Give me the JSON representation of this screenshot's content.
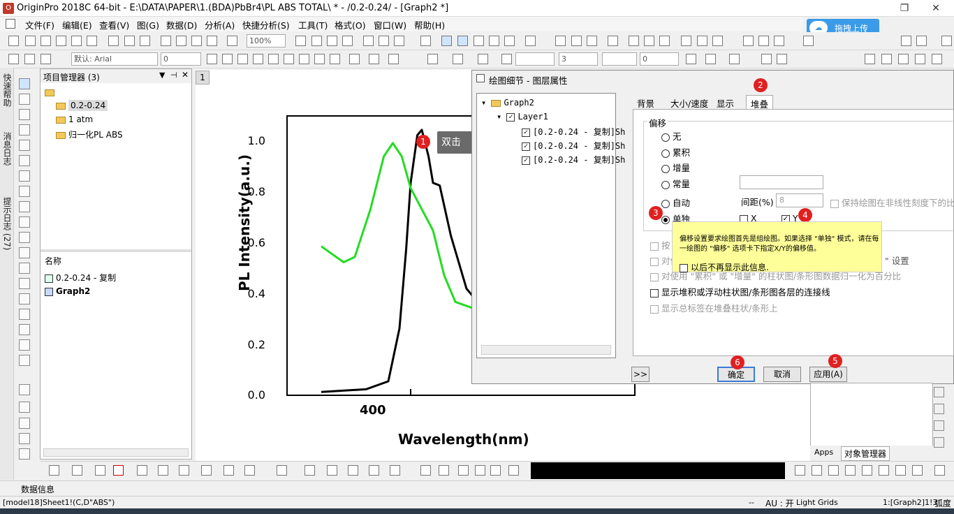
{
  "window": {
    "title": "OriginPro 2018C 64-bit - E:\\DATA\\PAPER\\1.(BDA)PbBr4\\PL ABS TOTAL\\ * - /0.2-0.24/ - [Graph2 *]"
  },
  "menu": [
    "文件(F)",
    "编辑(E)",
    "查看(V)",
    "图(G)",
    "数据(D)",
    "分析(A)",
    "快捷分析(S)",
    "工具(T)",
    "格式(O)",
    "窗口(W)",
    "帮助(H)"
  ],
  "cloud_button": "拖拽上传",
  "toolbar": {
    "zoom": "100%",
    "font": "默认: Arial",
    "font_size": "0",
    "line_width": "3",
    "line_value": "0"
  },
  "sidebar_tabs": [
    "快速帮助",
    "消息日志",
    "提示日志 (27)"
  ],
  "project_manager": {
    "title": "项目管理器 (3)",
    "folders": [
      "0.2-0.24",
      "1 atm",
      "归一化PL ABS"
    ],
    "list_header": "名称",
    "items": [
      "0.2-0.24 - 复制",
      "Graph2"
    ]
  },
  "graph": {
    "tab": "1",
    "ylabel": "PL Intensity(a.u.)",
    "xlabel": "Wavelength(nm)",
    "yticks": [
      "1.0",
      "0.8",
      "0.6",
      "0.4",
      "0.2",
      "0.0"
    ],
    "xticks": [
      "400"
    ]
  },
  "chart_data": {
    "type": "line",
    "ylabel": "PL Intensity(a.u.)",
    "xlabel": "Wavelength(nm)",
    "ylim": [
      0,
      1.05
    ],
    "series": [
      {
        "color": "#000000",
        "points": [
          [
            360,
            0.01
          ],
          [
            380,
            0.02
          ],
          [
            390,
            0.05
          ],
          [
            395,
            0.25
          ],
          [
            398,
            0.55
          ],
          [
            400,
            0.8
          ],
          [
            403,
            0.98
          ],
          [
            405,
            1.0
          ],
          [
            408,
            0.9
          ],
          [
            410,
            0.8
          ],
          [
            413,
            0.79
          ],
          [
            418,
            0.6
          ],
          [
            425,
            0.4
          ],
          [
            435,
            0.3
          ],
          [
            450,
            0.27
          ]
        ]
      },
      {
        "color": "#22dd22",
        "points": [
          [
            360,
            0.56
          ],
          [
            370,
            0.5
          ],
          [
            375,
            0.52
          ],
          [
            382,
            0.7
          ],
          [
            388,
            0.9
          ],
          [
            392,
            0.95
          ],
          [
            396,
            0.9
          ],
          [
            400,
            0.78
          ],
          [
            405,
            0.7
          ],
          [
            410,
            0.62
          ],
          [
            415,
            0.45
          ],
          [
            420,
            0.35
          ],
          [
            430,
            0.32
          ],
          [
            450,
            0.3
          ]
        ]
      }
    ]
  },
  "dialog": {
    "title": "绘图细节 - 图层属性",
    "tree": [
      "Graph2",
      "Layer1",
      "[0.2-0.24 - 复制]Sh",
      "[0.2-0.24 - 复制]Sh",
      "[0.2-0.24 - 复制]Sh"
    ],
    "tabs": [
      "背景",
      "大小/速度",
      "显示",
      "堆叠"
    ],
    "group_label": "偏移",
    "options": [
      "无",
      "累积",
      "增量",
      "常量",
      "自动",
      "单独"
    ],
    "spacing_label": "间距(%)",
    "spacing_value": "8",
    "keep_ratio": "保持绘图在非线性刻度下的比例",
    "x_label": "X",
    "y_label": "Y",
    "option_a": "按",
    "option_b": "对使",
    "option_b_tail": "\" 设置",
    "option_c": "对使用 \"累积\" 或 \"增量\" 的柱状图/条形图数据归一化为百分比",
    "option_d": "显示堆积或浮动柱状图/条形图各层的连接线",
    "option_e": "显示总标签在堆叠柱状/条形上",
    "expand": ">>",
    "ok": "确定",
    "cancel": "取消",
    "apply": "应用(A)"
  },
  "tooltip": {
    "text": "偏移设置要求绘图首先是组绘图。如果选择 \"单独\" 模式，请在每一绘图的 \"偏移\" 选项卡下指定X/Y的偏移值。",
    "checkbox": "以后不再显示此信息."
  },
  "annotations": {
    "dblclick": "双击",
    "b1": "1",
    "b2": "2",
    "b3": "3",
    "b4": "4",
    "b5": "5",
    "b6": "6"
  },
  "right_panel_tabs": [
    "Apps",
    "对象管理器"
  ],
  "data_info": "数据信息",
  "status": {
    "left": "[model18]Sheet1!(C,D\"ABS\")",
    "dashes": "--",
    "au": "AU : 开",
    "grids": "Light Grids",
    "layer": "1:[Graph2]1!3",
    "unit": "弧度"
  }
}
